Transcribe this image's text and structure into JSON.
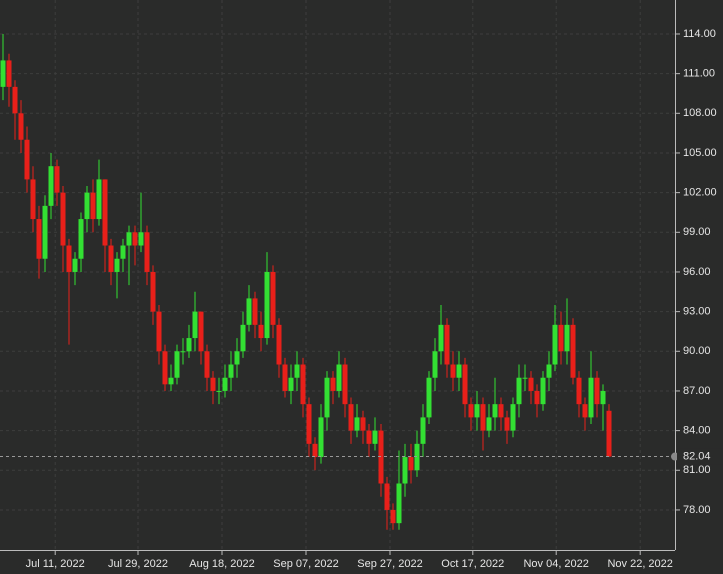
{
  "chart_data": {
    "type": "candlestick",
    "ohlc": [
      [
        110,
        114,
        109,
        112
      ],
      [
        112,
        112.5,
        108.5,
        110
      ],
      [
        110,
        110.5,
        106,
        108
      ],
      [
        108,
        109,
        105,
        106
      ],
      [
        106,
        107,
        102,
        103
      ],
      [
        103,
        104,
        99,
        100
      ],
      [
        100,
        101,
        95.5,
        97
      ],
      [
        97,
        101.8,
        96,
        101
      ],
      [
        101,
        105,
        100,
        104
      ],
      [
        104,
        104.5,
        101,
        102
      ],
      [
        102,
        102.5,
        96,
        98
      ],
      [
        98,
        98.5,
        90.5,
        96
      ],
      [
        96,
        97.5,
        95,
        97
      ],
      [
        97,
        100.5,
        96,
        100
      ],
      [
        100,
        102.5,
        99,
        102
      ],
      [
        102,
        103,
        99,
        100
      ],
      [
        100,
        104.5,
        99.5,
        103
      ],
      [
        103,
        103,
        96,
        98
      ],
      [
        98,
        98.5,
        95,
        96
      ],
      [
        96,
        97.5,
        94,
        97
      ],
      [
        97,
        98.5,
        96,
        98
      ],
      [
        98,
        99.5,
        95,
        99
      ],
      [
        99,
        99.5,
        96.5,
        98
      ],
      [
        98,
        102,
        97.5,
        99
      ],
      [
        99,
        99.5,
        95,
        96
      ],
      [
        96,
        96.5,
        92,
        93
      ],
      [
        93,
        93.5,
        89,
        90
      ],
      [
        90,
        90.5,
        87,
        87.5
      ],
      [
        87.5,
        89,
        87,
        88
      ],
      [
        88,
        90.5,
        87.5,
        90
      ],
      [
        90,
        91,
        89,
        90
      ],
      [
        90,
        92,
        89.5,
        91
      ],
      [
        91,
        94.5,
        90,
        93
      ],
      [
        93,
        93,
        89,
        90
      ],
      [
        90,
        90.5,
        87,
        88
      ],
      [
        88,
        88.5,
        86,
        87
      ],
      [
        87,
        88,
        86,
        87
      ],
      [
        87,
        89,
        86.5,
        88
      ],
      [
        88,
        90,
        87,
        89
      ],
      [
        89,
        91,
        88,
        90
      ],
      [
        90,
        93,
        89.5,
        92
      ],
      [
        92,
        95,
        91.5,
        94
      ],
      [
        94,
        94.5,
        91,
        92
      ],
      [
        92,
        93,
        90,
        91
      ],
      [
        91,
        97.5,
        90.5,
        96
      ],
      [
        96,
        96.5,
        91,
        92
      ],
      [
        92,
        92.5,
        88,
        89
      ],
      [
        89,
        89.5,
        86.5,
        87
      ],
      [
        87,
        89,
        86,
        88
      ],
      [
        88,
        90,
        87,
        89
      ],
      [
        89,
        89.5,
        85,
        86
      ],
      [
        86,
        86.5,
        82,
        83
      ],
      [
        83,
        83.5,
        81,
        82
      ],
      [
        82,
        86,
        81.5,
        85
      ],
      [
        85,
        88.5,
        84,
        88
      ],
      [
        88,
        88.5,
        86,
        87
      ],
      [
        87,
        90,
        86.5,
        89
      ],
      [
        89,
        89.5,
        85,
        86
      ],
      [
        86,
        86.5,
        83,
        84
      ],
      [
        84,
        86,
        83.5,
        85
      ],
      [
        85,
        85.5,
        83,
        84
      ],
      [
        84,
        84.5,
        82,
        83
      ],
      [
        83,
        85,
        82.5,
        84
      ],
      [
        84,
        84.5,
        79,
        80
      ],
      [
        80,
        80.5,
        76.5,
        78
      ],
      [
        78,
        78.5,
        76.5,
        77
      ],
      [
        77,
        82.5,
        76.5,
        80
      ],
      [
        80,
        83,
        79,
        82
      ],
      [
        82,
        83,
        80,
        81
      ],
      [
        81,
        84,
        80.5,
        83
      ],
      [
        83,
        86,
        82,
        85
      ],
      [
        85,
        88.5,
        84.5,
        88
      ],
      [
        88,
        91,
        87,
        90
      ],
      [
        90,
        93.5,
        89,
        92
      ],
      [
        92,
        92.5,
        88,
        89
      ],
      [
        89,
        90,
        87,
        88
      ],
      [
        88,
        90,
        87,
        89
      ],
      [
        89,
        89.5,
        85,
        86
      ],
      [
        86,
        86.5,
        84,
        85
      ],
      [
        85,
        87,
        84,
        86
      ],
      [
        86,
        86.5,
        82.5,
        84
      ],
      [
        84,
        86,
        83.5,
        85
      ],
      [
        85,
        88,
        84,
        86
      ],
      [
        86,
        86.5,
        84,
        85
      ],
      [
        85,
        85.5,
        83,
        84
      ],
      [
        84,
        86.5,
        83.5,
        86
      ],
      [
        86,
        89,
        85,
        88
      ],
      [
        88,
        89,
        87,
        88
      ],
      [
        88,
        88.5,
        86,
        87
      ],
      [
        87,
        87.5,
        85,
        86
      ],
      [
        86,
        88.5,
        85.5,
        88
      ],
      [
        88,
        90,
        87,
        89
      ],
      [
        89,
        93.5,
        88.5,
        92
      ],
      [
        92,
        93,
        89,
        90
      ],
      [
        90,
        94,
        89,
        92
      ],
      [
        92,
        92.5,
        87.5,
        88
      ],
      [
        88,
        88.5,
        85,
        86
      ],
      [
        86,
        86.5,
        84,
        85
      ],
      [
        85,
        90,
        84.5,
        88
      ],
      [
        88,
        88.5,
        85,
        86
      ],
      [
        86,
        87.5,
        84,
        87
      ],
      [
        85.5,
        86,
        82,
        82.04
      ]
    ],
    "up_color": "#33e033",
    "down_color": "#e8201a",
    "last_price": {
      "value": 82.04,
      "label": "82.04"
    },
    "xlim": [
      -0.5,
      112
    ],
    "xticks": [
      {
        "value": 8.7,
        "label": "Jul 11, 2022"
      },
      {
        "value": 22.5,
        "label": "Jul 29, 2022"
      },
      {
        "value": 36.5,
        "label": "Aug 18, 2022"
      },
      {
        "value": 50.5,
        "label": "Sep 07, 2022"
      },
      {
        "value": 64.5,
        "label": "Sep 27, 2022"
      },
      {
        "value": 78.3,
        "label": "Oct 17, 2022"
      },
      {
        "value": 92.2,
        "label": "Nov 04, 2022"
      },
      {
        "value": 106.2,
        "label": "Nov 22, 2022"
      }
    ],
    "ylim": [
      74.97,
      116.57
    ],
    "yticks": [
      {
        "value": 78,
        "label": "78.00"
      },
      {
        "value": 81,
        "label": "81.00"
      },
      {
        "value": 84,
        "label": "84.00"
      },
      {
        "value": 87,
        "label": "87.00"
      },
      {
        "value": 90,
        "label": "90.00"
      },
      {
        "value": 93,
        "label": "93.00"
      },
      {
        "value": 96,
        "label": "96.00"
      },
      {
        "value": 99,
        "label": "99.00"
      },
      {
        "value": 102,
        "label": "102.00"
      },
      {
        "value": 105,
        "label": "105.00"
      },
      {
        "value": 108,
        "label": "108.00"
      },
      {
        "value": 111,
        "label": "111.00"
      },
      {
        "value": 114,
        "label": "114.00"
      }
    ],
    "grid": true
  }
}
